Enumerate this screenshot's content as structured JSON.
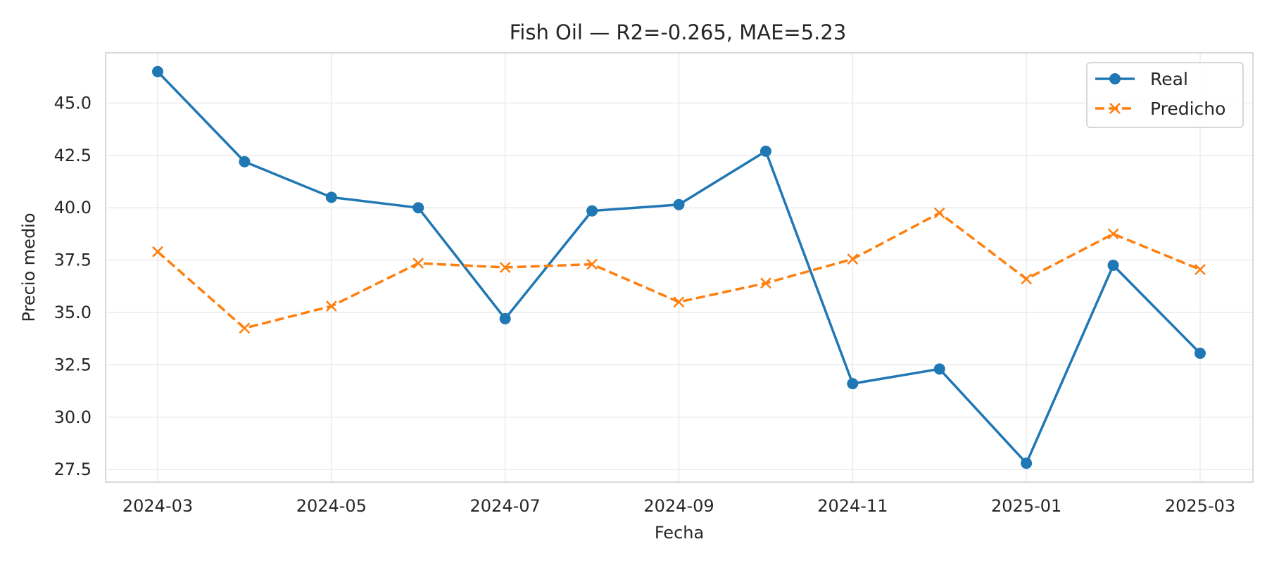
{
  "chart_data": {
    "type": "line",
    "title": "Fish Oil — R2=-0.265, MAE=5.23",
    "xlabel": "Fecha",
    "ylabel": "Precio medio",
    "x": [
      "2024-03",
      "2024-04",
      "2024-05",
      "2024-06",
      "2024-07",
      "2024-08",
      "2024-09",
      "2024-10",
      "2024-11",
      "2024-12",
      "2025-01",
      "2025-02",
      "2025-03"
    ],
    "x_ticks": [
      "2024-03",
      "2024-05",
      "2024-07",
      "2024-09",
      "2024-11",
      "2025-01",
      "2025-03"
    ],
    "y_ticks": [
      "27.5",
      "30.0",
      "32.5",
      "35.0",
      "37.5",
      "40.0",
      "42.5",
      "45.0"
    ],
    "ylim": [
      26.9,
      47.4
    ],
    "grid": true,
    "legend_position": "top-right",
    "series": [
      {
        "name": "Real",
        "color": "#1f77b4",
        "marker": "circle",
        "line_style": "solid",
        "values": [
          46.5,
          42.2,
          40.5,
          40.0,
          34.7,
          39.85,
          40.15,
          42.7,
          31.6,
          32.3,
          27.8,
          37.25,
          33.05
        ]
      },
      {
        "name": "Predicho",
        "color": "#ff7f0e",
        "marker": "x",
        "line_style": "dashed",
        "values": [
          37.9,
          34.25,
          35.3,
          37.35,
          37.15,
          37.3,
          35.5,
          36.4,
          37.55,
          39.75,
          36.6,
          38.75,
          37.05
        ]
      }
    ]
  }
}
